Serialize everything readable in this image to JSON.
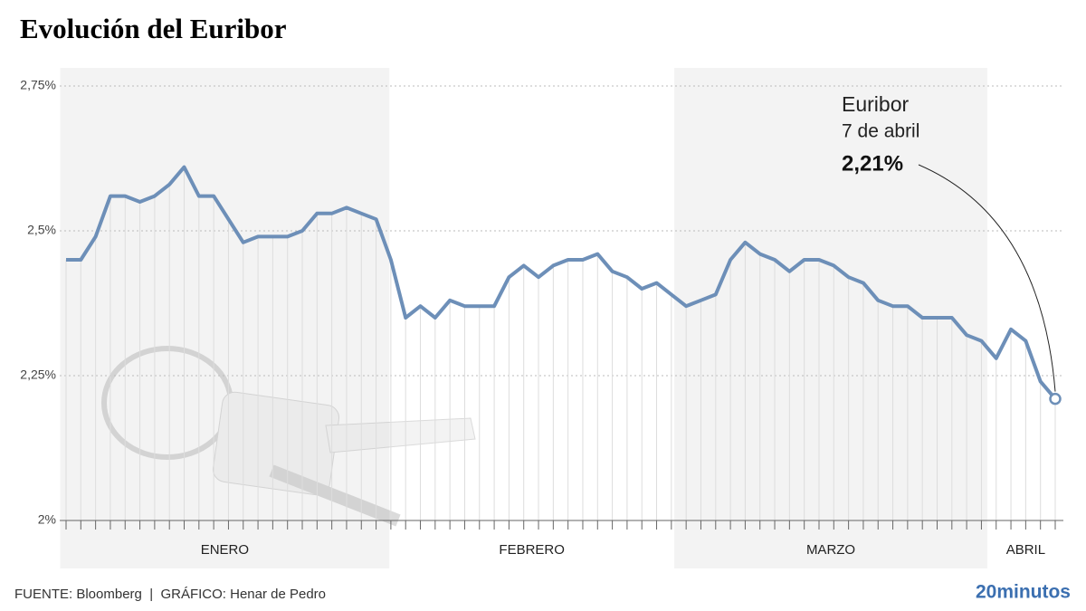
{
  "chart_data": {
    "type": "line",
    "title": "Evolución del Euribor",
    "categories": [
      null,
      null,
      null,
      null,
      null,
      null,
      null,
      null,
      null,
      null,
      null,
      null,
      null,
      null,
      null,
      null,
      null,
      null,
      null,
      null,
      null,
      null,
      null,
      null,
      null,
      null,
      null,
      null,
      null,
      null,
      null,
      null,
      null,
      null,
      null,
      null,
      null,
      null,
      null,
      null,
      null,
      null,
      null,
      null,
      null,
      null,
      null,
      null,
      null,
      null,
      null,
      null,
      null,
      null,
      null,
      null,
      null,
      null,
      null,
      null,
      null,
      null,
      null,
      null,
      null,
      null,
      null,
      null
    ],
    "months": [
      "ENERO",
      "FEBRERO",
      "MARZO",
      "ABRIL"
    ],
    "series": [
      {
        "name": "Euribor",
        "color": "#6d8fb8",
        "values": [
          2.45,
          2.45,
          2.49,
          2.56,
          2.56,
          2.55,
          2.56,
          2.58,
          2.61,
          2.56,
          2.56,
          2.52,
          2.48,
          2.49,
          2.49,
          2.49,
          2.5,
          2.53,
          2.53,
          2.54,
          2.53,
          2.52,
          2.45,
          2.35,
          2.37,
          2.35,
          2.38,
          2.37,
          2.37,
          2.37,
          2.42,
          2.44,
          2.42,
          2.44,
          2.45,
          2.45,
          2.46,
          2.43,
          2.42,
          2.4,
          2.41,
          2.39,
          2.37,
          2.38,
          2.39,
          2.45,
          2.48,
          2.46,
          2.45,
          2.43,
          2.45,
          2.45,
          2.44,
          2.42,
          2.41,
          2.38,
          2.37,
          2.37,
          2.35,
          2.35,
          2.35,
          2.32,
          2.31,
          2.28,
          2.33,
          2.31,
          2.24,
          2.21
        ]
      }
    ],
    "ylim": [
      2,
      2.75
    ],
    "yticks": [
      {
        "value": 2,
        "label": "2%"
      },
      {
        "value": 2.25,
        "label": "2,25%"
      },
      {
        "value": 2.5,
        "label": "2,5%"
      },
      {
        "value": 2.75,
        "label": "2,75%"
      }
    ],
    "grid": true,
    "annotation": {
      "name": "Euribor",
      "date": "7 de abril",
      "value": 2.21,
      "label": "2,21%"
    },
    "source": "FUENTE: Bloomberg  |  GRÁFICO: Henar de Pedro",
    "brand": "20minutos"
  }
}
